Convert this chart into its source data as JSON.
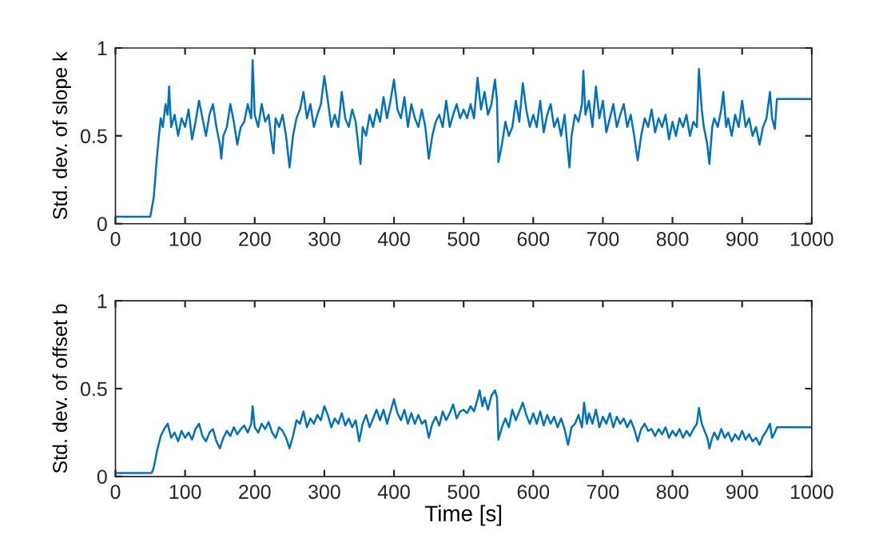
{
  "chart_data": [
    {
      "type": "line",
      "ylabel": "Std. dev. of slope k",
      "xlim": [
        0,
        1000
      ],
      "xticks": [
        0,
        100,
        200,
        300,
        400,
        500,
        600,
        700,
        800,
        900,
        1000
      ],
      "ylim": [
        0,
        1
      ],
      "yticks": [
        0,
        0.5,
        1
      ],
      "grid": false,
      "x": [
        0,
        50,
        55,
        60,
        65,
        68,
        72,
        75,
        77,
        80,
        85,
        90,
        95,
        100,
        105,
        110,
        115,
        120,
        125,
        130,
        135,
        140,
        145,
        150,
        152,
        155,
        160,
        165,
        170,
        175,
        180,
        185,
        190,
        195,
        197,
        200,
        205,
        210,
        215,
        220,
        225,
        227,
        230,
        235,
        240,
        245,
        250,
        255,
        260,
        265,
        270,
        275,
        280,
        285,
        290,
        295,
        300,
        305,
        310,
        315,
        320,
        325,
        330,
        335,
        340,
        345,
        350,
        352,
        355,
        360,
        365,
        370,
        375,
        380,
        385,
        390,
        395,
        400,
        405,
        410,
        415,
        420,
        425,
        430,
        435,
        440,
        445,
        450,
        455,
        460,
        465,
        470,
        475,
        480,
        485,
        490,
        495,
        500,
        505,
        510,
        515,
        520,
        525,
        530,
        535,
        540,
        545,
        548,
        550,
        555,
        560,
        565,
        570,
        575,
        580,
        585,
        590,
        595,
        600,
        605,
        610,
        615,
        620,
        625,
        630,
        635,
        640,
        645,
        650,
        652,
        655,
        660,
        665,
        670,
        672,
        675,
        680,
        685,
        690,
        695,
        700,
        705,
        710,
        715,
        720,
        725,
        730,
        735,
        740,
        745,
        750,
        755,
        760,
        765,
        770,
        775,
        780,
        785,
        790,
        795,
        800,
        805,
        810,
        815,
        820,
        825,
        830,
        835,
        838,
        842,
        845,
        850,
        853,
        857,
        860,
        865,
        870,
        873,
        877,
        880,
        885,
        890,
        895,
        900,
        905,
        910,
        915,
        920,
        925,
        930,
        935,
        940,
        943,
        947,
        950,
        1000
      ],
      "series": [
        {
          "color": "#0072bd",
          "values": [
            0.04,
            0.04,
            0.15,
            0.4,
            0.6,
            0.55,
            0.68,
            0.62,
            0.78,
            0.55,
            0.62,
            0.5,
            0.6,
            0.55,
            0.65,
            0.48,
            0.58,
            0.7,
            0.6,
            0.5,
            0.62,
            0.68,
            0.55,
            0.45,
            0.37,
            0.5,
            0.55,
            0.68,
            0.58,
            0.45,
            0.55,
            0.58,
            0.68,
            0.6,
            0.93,
            0.62,
            0.55,
            0.68,
            0.58,
            0.62,
            0.45,
            0.4,
            0.6,
            0.55,
            0.62,
            0.5,
            0.32,
            0.5,
            0.6,
            0.65,
            0.75,
            0.6,
            0.68,
            0.55,
            0.62,
            0.68,
            0.84,
            0.7,
            0.55,
            0.62,
            0.55,
            0.75,
            0.6,
            0.55,
            0.65,
            0.58,
            0.4,
            0.34,
            0.55,
            0.5,
            0.62,
            0.55,
            0.65,
            0.58,
            0.72,
            0.6,
            0.7,
            0.82,
            0.65,
            0.6,
            0.72,
            0.55,
            0.68,
            0.6,
            0.55,
            0.65,
            0.55,
            0.37,
            0.5,
            0.58,
            0.62,
            0.55,
            0.7,
            0.55,
            0.62,
            0.68,
            0.6,
            0.65,
            0.6,
            0.68,
            0.6,
            0.83,
            0.65,
            0.75,
            0.62,
            0.68,
            0.82,
            0.7,
            0.35,
            0.45,
            0.58,
            0.5,
            0.55,
            0.7,
            0.58,
            0.8,
            0.65,
            0.55,
            0.62,
            0.55,
            0.7,
            0.52,
            0.62,
            0.68,
            0.55,
            0.6,
            0.5,
            0.62,
            0.4,
            0.32,
            0.5,
            0.62,
            0.58,
            0.68,
            0.87,
            0.62,
            0.7,
            0.55,
            0.78,
            0.6,
            0.7,
            0.52,
            0.6,
            0.68,
            0.55,
            0.62,
            0.68,
            0.55,
            0.62,
            0.5,
            0.36,
            0.5,
            0.6,
            0.55,
            0.65,
            0.52,
            0.6,
            0.55,
            0.62,
            0.48,
            0.58,
            0.5,
            0.6,
            0.55,
            0.62,
            0.5,
            0.58,
            0.55,
            0.88,
            0.65,
            0.55,
            0.45,
            0.34,
            0.55,
            0.6,
            0.55,
            0.65,
            0.75,
            0.55,
            0.6,
            0.5,
            0.62,
            0.55,
            0.7,
            0.55,
            0.6,
            0.5,
            0.55,
            0.45,
            0.55,
            0.6,
            0.75,
            0.6,
            0.54,
            0.71,
            0.71
          ]
        }
      ]
    },
    {
      "type": "line",
      "ylabel": "Std. dev. of offset b",
      "xlabel": "Time [s]",
      "xlim": [
        0,
        1000
      ],
      "xticks": [
        0,
        100,
        200,
        300,
        400,
        500,
        600,
        700,
        800,
        900,
        1000
      ],
      "ylim": [
        0,
        1
      ],
      "yticks": [
        0,
        0.5,
        1
      ],
      "grid": false,
      "x": [
        0,
        52,
        55,
        60,
        65,
        70,
        75,
        80,
        85,
        90,
        95,
        100,
        105,
        110,
        115,
        120,
        125,
        130,
        135,
        140,
        145,
        150,
        155,
        160,
        165,
        170,
        175,
        180,
        185,
        190,
        195,
        197,
        200,
        205,
        210,
        215,
        220,
        225,
        230,
        235,
        240,
        245,
        250,
        255,
        260,
        265,
        270,
        275,
        280,
        285,
        290,
        295,
        300,
        305,
        310,
        315,
        320,
        325,
        330,
        335,
        340,
        345,
        350,
        355,
        360,
        365,
        370,
        375,
        380,
        385,
        390,
        395,
        400,
        405,
        410,
        415,
        420,
        425,
        430,
        435,
        440,
        445,
        450,
        455,
        460,
        465,
        470,
        475,
        480,
        485,
        490,
        495,
        500,
        505,
        510,
        515,
        520,
        523,
        527,
        530,
        535,
        540,
        545,
        548,
        550,
        555,
        560,
        565,
        570,
        575,
        580,
        585,
        590,
        595,
        600,
        605,
        610,
        615,
        620,
        625,
        630,
        635,
        640,
        645,
        650,
        655,
        660,
        665,
        670,
        673,
        677,
        680,
        685,
        690,
        695,
        700,
        705,
        710,
        715,
        720,
        725,
        730,
        735,
        740,
        745,
        750,
        755,
        760,
        765,
        770,
        775,
        780,
        785,
        790,
        795,
        800,
        805,
        810,
        815,
        820,
        825,
        830,
        835,
        838,
        842,
        845,
        850,
        853,
        857,
        860,
        865,
        870,
        875,
        880,
        885,
        890,
        895,
        900,
        905,
        910,
        915,
        920,
        925,
        930,
        935,
        940,
        943,
        947,
        950,
        1000
      ],
      "series": [
        {
          "color": "#0072bd",
          "values": [
            0.02,
            0.02,
            0.05,
            0.15,
            0.23,
            0.27,
            0.3,
            0.22,
            0.25,
            0.2,
            0.26,
            0.22,
            0.25,
            0.21,
            0.27,
            0.3,
            0.23,
            0.2,
            0.25,
            0.27,
            0.2,
            0.16,
            0.22,
            0.26,
            0.23,
            0.28,
            0.24,
            0.27,
            0.29,
            0.25,
            0.3,
            0.4,
            0.28,
            0.25,
            0.3,
            0.27,
            0.31,
            0.25,
            0.22,
            0.28,
            0.26,
            0.22,
            0.16,
            0.23,
            0.32,
            0.3,
            0.37,
            0.28,
            0.33,
            0.3,
            0.35,
            0.32,
            0.4,
            0.35,
            0.28,
            0.33,
            0.3,
            0.36,
            0.29,
            0.33,
            0.28,
            0.32,
            0.2,
            0.3,
            0.35,
            0.28,
            0.33,
            0.38,
            0.32,
            0.38,
            0.3,
            0.37,
            0.44,
            0.36,
            0.32,
            0.38,
            0.3,
            0.36,
            0.3,
            0.35,
            0.3,
            0.32,
            0.22,
            0.3,
            0.34,
            0.29,
            0.37,
            0.32,
            0.36,
            0.41,
            0.33,
            0.37,
            0.38,
            0.36,
            0.4,
            0.37,
            0.44,
            0.49,
            0.4,
            0.45,
            0.38,
            0.46,
            0.49,
            0.45,
            0.21,
            0.28,
            0.33,
            0.28,
            0.38,
            0.32,
            0.37,
            0.42,
            0.35,
            0.3,
            0.36,
            0.3,
            0.37,
            0.29,
            0.35,
            0.3,
            0.34,
            0.28,
            0.33,
            0.27,
            0.18,
            0.28,
            0.3,
            0.35,
            0.28,
            0.42,
            0.3,
            0.36,
            0.3,
            0.38,
            0.28,
            0.34,
            0.3,
            0.36,
            0.28,
            0.34,
            0.3,
            0.33,
            0.28,
            0.32,
            0.27,
            0.2,
            0.27,
            0.3,
            0.26,
            0.27,
            0.23,
            0.27,
            0.24,
            0.28,
            0.22,
            0.26,
            0.23,
            0.27,
            0.22,
            0.26,
            0.23,
            0.27,
            0.3,
            0.39,
            0.3,
            0.27,
            0.22,
            0.16,
            0.22,
            0.25,
            0.21,
            0.27,
            0.22,
            0.25,
            0.2,
            0.24,
            0.21,
            0.26,
            0.21,
            0.24,
            0.2,
            0.22,
            0.18,
            0.23,
            0.26,
            0.3,
            0.22,
            0.25,
            0.28,
            0.28
          ]
        }
      ]
    }
  ]
}
